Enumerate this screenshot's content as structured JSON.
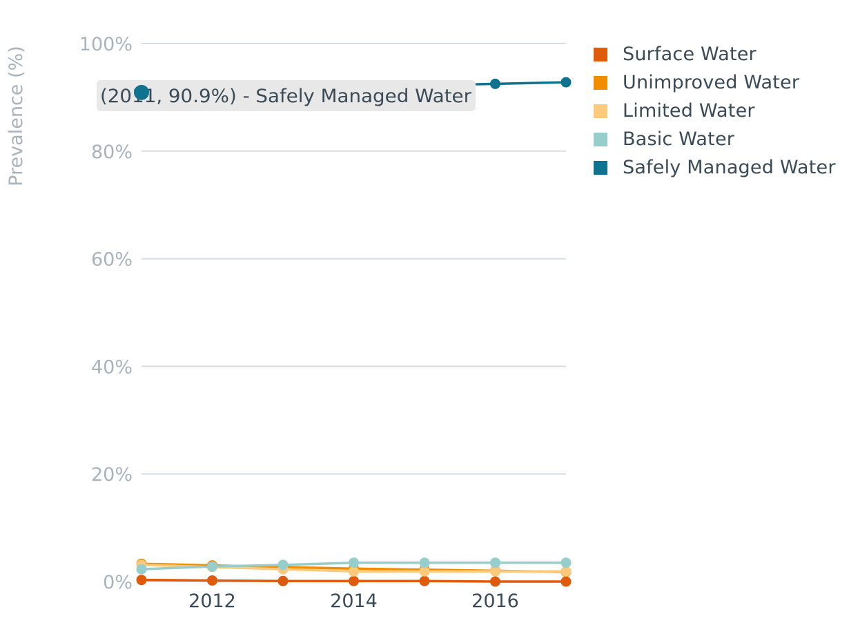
{
  "chart_data": {
    "type": "line",
    "title": "",
    "xlabel": "",
    "ylabel": "Prevalence (%)",
    "x": [
      2011,
      2012,
      2013,
      2014,
      2015,
      2016,
      2017
    ],
    "x_ticks": [
      "2012",
      "2014",
      "2016"
    ],
    "y_ticks": [
      "0%",
      "20%",
      "40%",
      "60%",
      "80%",
      "100%"
    ],
    "ylim": [
      0,
      100
    ],
    "grid": true,
    "legend_position": "right",
    "series": [
      {
        "name": "Surface Water",
        "color": "#e05a0c",
        "values": [
          0.3,
          0.2,
          0.1,
          0.1,
          0.1,
          0.0,
          0.0
        ]
      },
      {
        "name": "Unimproved Water",
        "color": "#f28c00",
        "values": [
          3.3,
          3.0,
          2.7,
          2.4,
          2.2,
          2.0,
          1.8
        ]
      },
      {
        "name": "Limited Water",
        "color": "#fdc97a",
        "values": [
          3.1,
          2.7,
          2.3,
          1.9,
          1.9,
          1.9,
          1.9
        ]
      },
      {
        "name": "Basic Water",
        "color": "#97cdca",
        "values": [
          2.3,
          2.8,
          3.1,
          3.5,
          3.5,
          3.5,
          3.5
        ]
      },
      {
        "name": "Safely Managed Water",
        "color": "#0f7390",
        "values": [
          90.9,
          91.3,
          91.7,
          92.0,
          92.2,
          92.5,
          92.8
        ]
      }
    ],
    "tooltip": {
      "text": "(2011, 90.9%) - Safely Managed Water",
      "series_index": 4,
      "point_index": 0
    }
  }
}
